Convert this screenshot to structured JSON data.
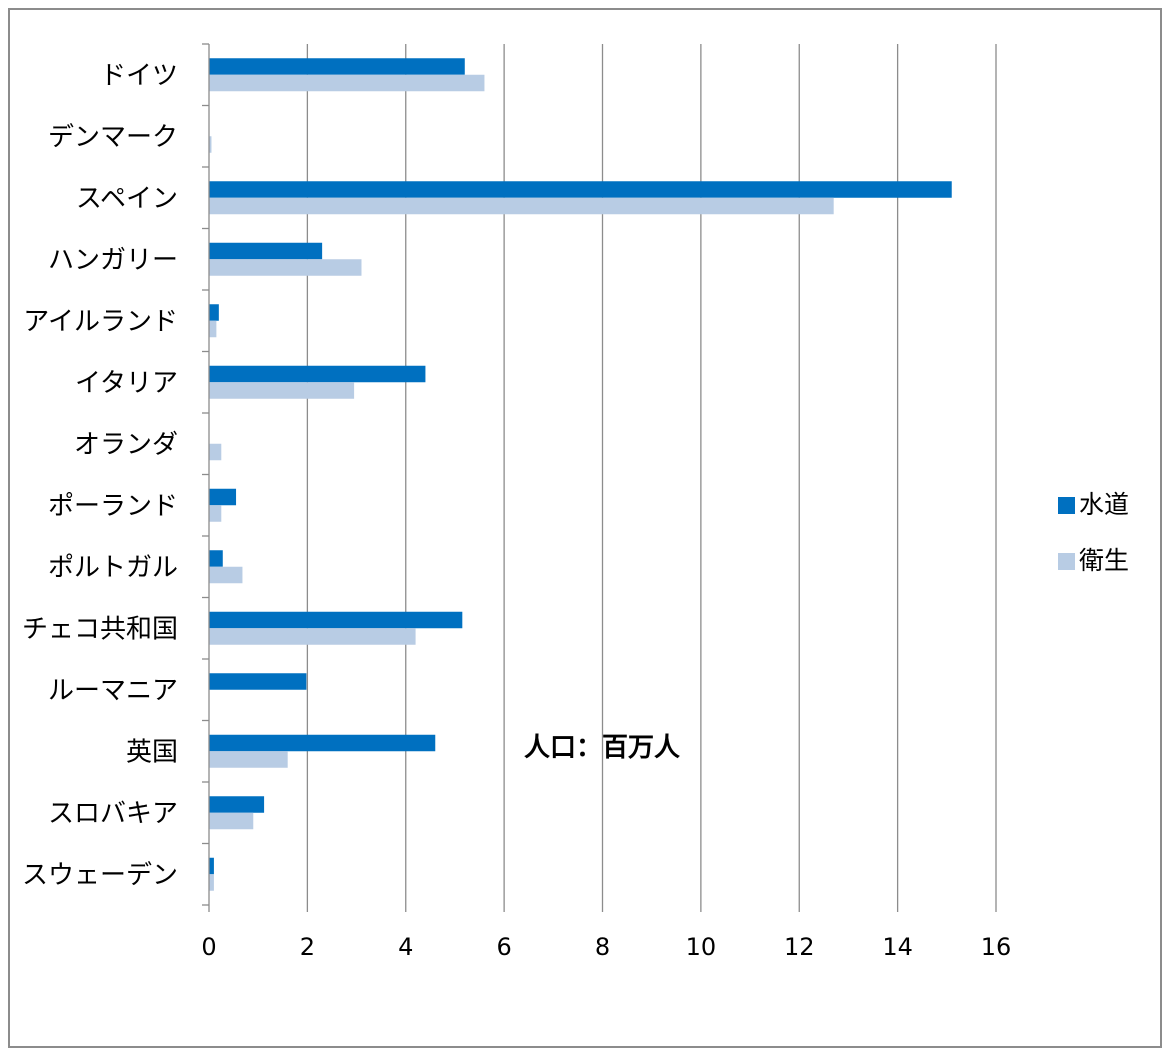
{
  "chart_data": {
    "type": "bar",
    "orientation": "horizontal",
    "categories": [
      "ドイツ",
      "デンマーク",
      "スペイン",
      "ハンガリー",
      "アイルランド",
      "イタリア",
      "オランダ",
      "ポーランド",
      "ポルトガル",
      "チェコ共和国",
      "ルーマニア",
      "英国",
      "スロバキア",
      "スウェーデン"
    ],
    "series": [
      {
        "name": "水道",
        "color": "#0070C0",
        "values": [
          5.2,
          0,
          15.1,
          2.3,
          0.2,
          4.4,
          0,
          0.55,
          0.28,
          5.15,
          1.98,
          4.6,
          1.12,
          0.1
        ]
      },
      {
        "name": "衛生",
        "color": "#B8CCE4",
        "values": [
          5.6,
          0.05,
          12.7,
          3.1,
          0.15,
          2.95,
          0.25,
          0.25,
          0.68,
          4.2,
          0,
          1.6,
          0.9,
          0.1
        ]
      }
    ],
    "x_ticks": [
      "0",
      "2",
      "4",
      "6",
      "8",
      "10",
      "12",
      "14",
      "16"
    ],
    "xlim": [
      0,
      16
    ],
    "xlabel": "人口：百万人",
    "grid": "vertical",
    "legend": "right"
  }
}
